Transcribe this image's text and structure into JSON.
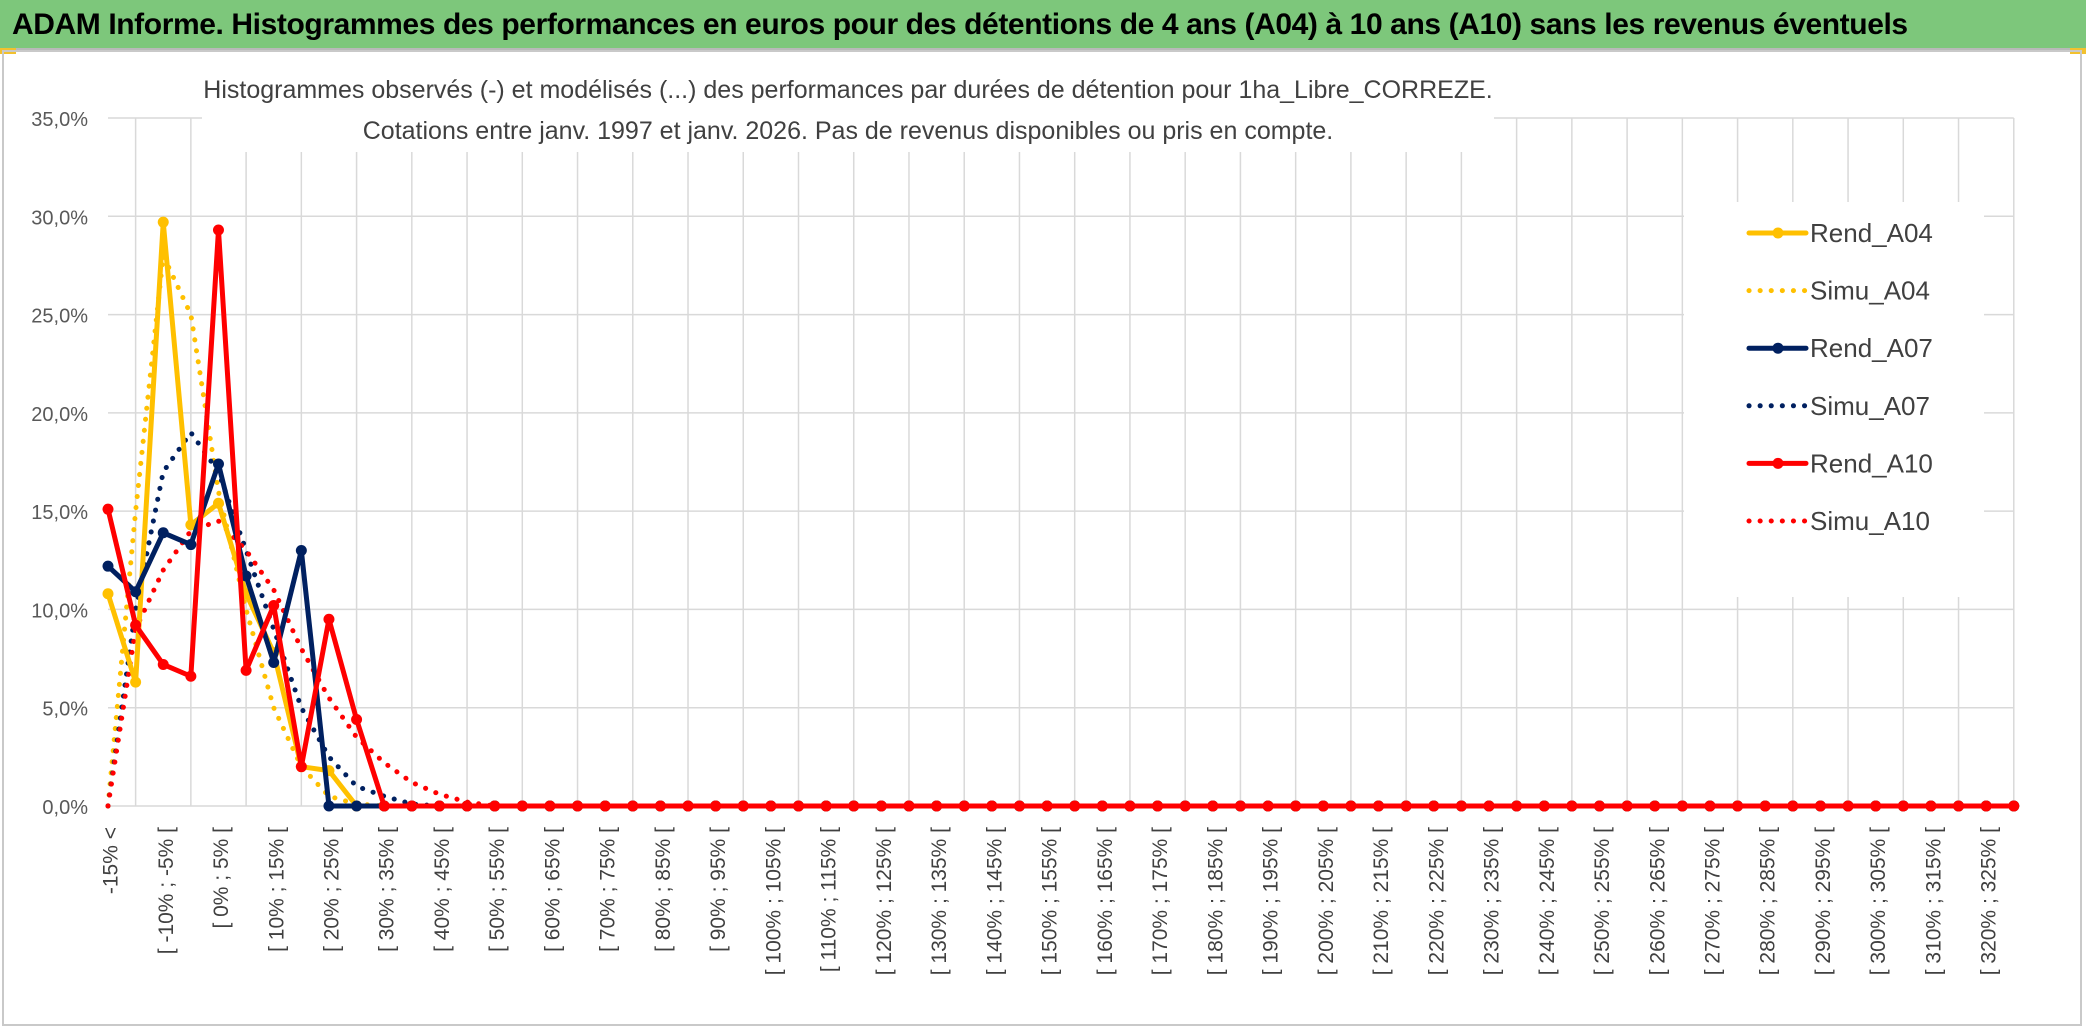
{
  "header": {
    "title": "ADAM Informe. Histogrammes des performances en euros pour des détentions de 4 ans (A04) à 10 ans (A10) sans les revenus éventuels",
    "background": "#7dc77b"
  },
  "chart_data": {
    "type": "line",
    "title": "Histogrammes observés (-) et modélisés (...) des performances par durées de détention pour 1ha_Libre_CORREZE.",
    "subtitle": "Cotations entre janv. 1997 et janv. 2026. Pas de revenus disponibles ou pris en compte.",
    "xlabel": "",
    "ylabel": "",
    "ylim": [
      0,
      35
    ],
    "yticks": [
      "0,0%",
      "5,0%",
      "10,0%",
      "15,0%",
      "20,0%",
      "25,0%",
      "30,0%",
      "35,0%"
    ],
    "grid": true,
    "legend_position": "right",
    "x_tick_labels": [
      "-15% <",
      "[ -10% ; -5% [",
      "[ 0% ; 5% [",
      "[ 10% ; 15% [",
      "[ 20% ; 25% [",
      "[ 30% ; 35% [",
      "[ 40% ; 45% [",
      "[ 50% ; 55% [",
      "[ 60% ; 65% [",
      "[ 70% ; 75% [",
      "[ 80% ; 85% [",
      "[ 90% ; 95% [",
      "[ 100% ; 105% [",
      "[ 110% ; 115% [",
      "[ 120% ; 125% [",
      "[ 130% ; 135% [",
      "[ 140% ; 145% [",
      "[ 150% ; 155% [",
      "[ 160% ; 165% [",
      "[ 170% ; 175% [",
      "[ 180% ; 185% [",
      "[ 190% ; 195% [",
      "[ 200% ; 205% [",
      "[ 210% ; 215% [",
      "[ 220% ; 225% [",
      "[ 230% ; 235% [",
      "[ 240% ; 245% [",
      "[ 250% ; 255% [",
      "[ 260% ; 265% [",
      "[ 270% ; 275% [",
      "[ 280% ; 285% [",
      "[ 290% ; 295% [",
      "[ 300% ; 305% [",
      "[ 310% ; 315% [",
      "[ 320% ; 325% ["
    ],
    "category_count": 70,
    "series": [
      {
        "name": "Rend_A04",
        "style": "solid",
        "color": "#ffc000",
        "values": [
          10.8,
          6.3,
          29.7,
          14.3,
          15.4,
          10.8,
          7.8,
          2.0,
          1.8,
          0.0
        ]
      },
      {
        "name": "Simu_A04",
        "style": "dotted",
        "color": "#ffc000",
        "values": [
          0.0,
          15.0,
          28.0,
          25.0,
          16.0,
          10.0,
          5.0,
          2.0,
          0.5,
          0.1,
          0.0
        ]
      },
      {
        "name": "Rend_A07",
        "style": "solid",
        "color": "#002060",
        "values": [
          12.2,
          10.9,
          13.9,
          13.3,
          17.4,
          11.7,
          7.3,
          13.0,
          0.0,
          0.0
        ]
      },
      {
        "name": "Simu_A07",
        "style": "dotted",
        "color": "#002060",
        "values": [
          0.0,
          10.0,
          17.0,
          19.0,
          17.0,
          13.0,
          9.0,
          5.0,
          2.5,
          1.0,
          0.5,
          0.1,
          0.0
        ]
      },
      {
        "name": "Rend_A10",
        "style": "solid",
        "color": "#ff0000",
        "values": [
          15.1,
          9.2,
          7.2,
          6.6,
          29.3,
          6.9,
          10.2,
          2.0,
          9.5,
          4.4,
          0.0
        ]
      },
      {
        "name": "Simu_A10",
        "style": "dotted",
        "color": "#ff0000",
        "values": [
          0.0,
          9.0,
          12.0,
          14.0,
          14.5,
          13.0,
          11.0,
          8.0,
          5.5,
          3.5,
          2.2,
          1.2,
          0.6,
          0.2,
          0.0
        ]
      }
    ]
  }
}
